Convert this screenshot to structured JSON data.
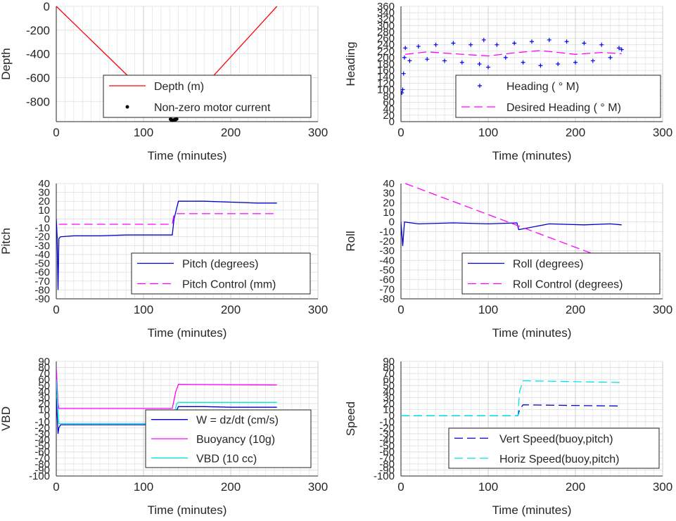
{
  "chart_data": [
    {
      "type": "line",
      "ylabel": "Depth",
      "xlabel": "Time (minutes)",
      "xlim": [
        0,
        300
      ],
      "ylim": [
        -970,
        0
      ],
      "xticks": [
        0,
        100,
        200,
        300
      ],
      "yticks": [
        0,
        -200,
        -400,
        -600,
        -800
      ],
      "grid": true,
      "legend_position": "lower-right",
      "series": [
        {
          "name": "Depth (m)",
          "color": "#ff0000",
          "style": "solid",
          "x": [
            0,
            134,
            253
          ],
          "y": [
            0,
            -955,
            0
          ]
        },
        {
          "name": "Non-zero motor current",
          "color": "#000000",
          "style": "dots",
          "x": [
            131,
            132,
            133,
            134,
            135,
            136,
            137,
            138
          ],
          "y": [
            -950,
            -955,
            -958,
            -958,
            -956,
            -955,
            -952,
            -948
          ]
        }
      ]
    },
    {
      "type": "scatter",
      "ylabel": "Heading",
      "xlabel": "Time (minutes)",
      "xlim": [
        0,
        300
      ],
      "ylim": [
        0,
        360
      ],
      "xticks": [
        0,
        100,
        200,
        300
      ],
      "yticks": [
        0,
        20,
        40,
        60,
        80,
        100,
        120,
        140,
        160,
        180,
        200,
        220,
        240,
        260,
        280,
        300,
        320,
        340,
        360
      ],
      "grid": true,
      "legend_position": "lower-right",
      "series": [
        {
          "name": "Heading (   ° M)",
          "color": "#0000ff",
          "style": "plus",
          "x": [
            1,
            2,
            3,
            4,
            5,
            10,
            20,
            30,
            40,
            50,
            60,
            70,
            80,
            90,
            95,
            100,
            110,
            120,
            130,
            140,
            150,
            160,
            170,
            180,
            190,
            200,
            210,
            220,
            230,
            240,
            250,
            253
          ],
          "y": [
            90,
            100,
            150,
            200,
            230,
            190,
            235,
            195,
            240,
            190,
            245,
            185,
            240,
            180,
            255,
            170,
            240,
            200,
            245,
            185,
            250,
            175,
            255,
            180,
            250,
            185,
            245,
            190,
            240,
            200,
            230,
            225
          ]
        },
        {
          "name": "Desired Heading (    ° M)",
          "color": "#ff00ff",
          "style": "dash",
          "x": [
            5,
            30,
            60,
            100,
            130,
            160,
            200,
            230,
            253
          ],
          "y": [
            210,
            218,
            212,
            205,
            215,
            222,
            210,
            216,
            212
          ]
        }
      ]
    },
    {
      "type": "line",
      "ylabel": "Pitch",
      "xlabel": "Time (minutes)",
      "xlim": [
        0,
        300
      ],
      "ylim": [
        -90,
        40
      ],
      "xticks": [
        0,
        100,
        200,
        300
      ],
      "yticks": [
        40,
        30,
        20,
        10,
        0,
        -10,
        -20,
        -30,
        -40,
        -50,
        -60,
        -70,
        -80,
        -90
      ],
      "grid": true,
      "legend_position": "lower-right",
      "series": [
        {
          "name": "Pitch (degrees)",
          "color": "#0000cc",
          "style": "solid",
          "x": [
            0,
            1,
            2,
            3,
            5,
            20,
            50,
            80,
            110,
            133,
            135,
            140,
            170,
            200,
            230,
            253
          ],
          "y": [
            0,
            -20,
            -80,
            -22,
            -20,
            -19,
            -19,
            -18,
            -18,
            -18,
            0,
            20,
            20,
            19,
            18,
            18
          ]
        },
        {
          "name": "Pitch Control (mm)",
          "color": "#ff00ff",
          "style": "dash",
          "x": [
            3,
            133,
            135,
            253
          ],
          "y": [
            -6,
            -6,
            6,
            6
          ]
        }
      ]
    },
    {
      "type": "line",
      "ylabel": "Roll",
      "xlabel": "Time (minutes)",
      "xlim": [
        0,
        300
      ],
      "ylim": [
        -80,
        40
      ],
      "xticks": [
        0,
        100,
        200,
        300
      ],
      "yticks": [
        40,
        30,
        20,
        10,
        0,
        -10,
        -20,
        -30,
        -40,
        -50,
        -60,
        -70,
        -80
      ],
      "grid": true,
      "legend_position": "lower-right",
      "series": [
        {
          "name": "Roll (degrees)",
          "color": "#0000cc",
          "style": "solid",
          "x": [
            0,
            2,
            4,
            20,
            60,
            100,
            133,
            135,
            170,
            210,
            240,
            253
          ],
          "y": [
            0,
            -25,
            0,
            -2,
            -1,
            -2,
            -1,
            -8,
            -2,
            -3,
            -2,
            -3
          ]
        },
        {
          "name": "Roll Control (degrees)",
          "color": "#ff00ff",
          "style": "dash",
          "x": [
            5,
            240
          ],
          "y": [
            40,
            -40
          ]
        }
      ]
    },
    {
      "type": "line",
      "ylabel": "VBD",
      "xlabel": "Time (minutes)",
      "xlim": [
        0,
        300
      ],
      "ylim": [
        -100,
        90
      ],
      "xticks": [
        0,
        100,
        200,
        300
      ],
      "yticks": [
        90,
        80,
        70,
        60,
        50,
        40,
        30,
        20,
        10,
        0,
        -10,
        -20,
        -30,
        -40,
        -50,
        -60,
        -70,
        -80,
        -90,
        -100
      ],
      "grid": true,
      "legend_position": "lower-right",
      "series": [
        {
          "name": "W = dz/dt (cm/s)",
          "color": "#0000cc",
          "style": "solid",
          "x": [
            0,
            2,
            3,
            5,
            50,
            100,
            132,
            135,
            140,
            170,
            200,
            253
          ],
          "y": [
            30,
            -30,
            -20,
            -15,
            -15,
            -15,
            -14,
            0,
            15,
            15,
            14,
            14
          ]
        },
        {
          "name": "Buoyancy (10g)",
          "color": "#ff00ff",
          "style": "solid",
          "x": [
            0,
            2,
            3,
            133,
            137,
            140,
            253
          ],
          "y": [
            80,
            20,
            12,
            12,
            40,
            52,
            51
          ]
        },
        {
          "name": "VBD (10 cc)",
          "color": "#00e5e5",
          "style": "solid",
          "x": [
            0,
            2,
            3,
            133,
            138,
            140,
            253
          ],
          "y": [
            60,
            10,
            -13,
            -13,
            20,
            22,
            22
          ]
        }
      ]
    },
    {
      "type": "line",
      "ylabel": "Speed",
      "xlabel": "Time (minutes)",
      "xlim": [
        0,
        300
      ],
      "ylim": [
        -100,
        90
      ],
      "xticks": [
        0,
        100,
        200,
        300
      ],
      "yticks": [
        90,
        80,
        70,
        60,
        50,
        40,
        30,
        20,
        10,
        0,
        -10,
        -20,
        -30,
        -40,
        -50,
        -60,
        -70,
        -80,
        -90,
        -100
      ],
      "grid": true,
      "legend_position": "lower-right",
      "series": [
        {
          "name": "Vert Speed(buoy,pitch)",
          "color": "#0000cc",
          "style": "dash",
          "x": [
            0,
            134,
            136,
            140,
            253
          ],
          "y": [
            0,
            0,
            10,
            18,
            16
          ]
        },
        {
          "name": "Horiz Speed(buoy,pitch)",
          "color": "#00e5e5",
          "style": "dash",
          "x": [
            0,
            134,
            136,
            140,
            253
          ],
          "y": [
            0,
            0,
            40,
            58,
            55
          ]
        }
      ]
    }
  ]
}
